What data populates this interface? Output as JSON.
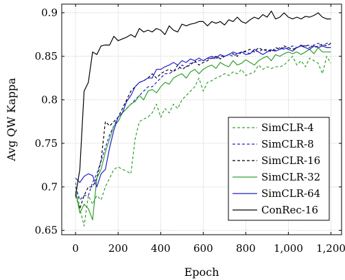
{
  "chart_data": {
    "type": "line",
    "xlabel": "Epoch",
    "ylabel": "Avg QW Kappa",
    "xlim": [
      -65,
      1250
    ],
    "ylim": [
      0.645,
      0.91
    ],
    "xticks": [
      0,
      200,
      400,
      600,
      800,
      1000,
      1200
    ],
    "xtick_labels": [
      "0",
      "200",
      "400",
      "600",
      "800",
      "1,000",
      "1,200"
    ],
    "yticks": [
      0.65,
      0.7,
      0.75,
      0.8,
      0.85,
      0.9
    ],
    "ytick_labels": [
      "0.65",
      "0.7",
      "0.75",
      "0.8",
      "0.85",
      "0.9"
    ],
    "grid": true,
    "legend_position": "lower-right",
    "series": [
      {
        "name": "SimCLR-4",
        "color": "#2ca02c",
        "dash": "dashed",
        "x": [
          0,
          20,
          40,
          60,
          80,
          100,
          120,
          140,
          160,
          180,
          200,
          220,
          240,
          260,
          280,
          300,
          320,
          340,
          360,
          380,
          400,
          420,
          440,
          460,
          480,
          500,
          520,
          540,
          560,
          580,
          600,
          620,
          640,
          660,
          680,
          700,
          720,
          740,
          760,
          780,
          800,
          820,
          840,
          860,
          880,
          900,
          920,
          940,
          960,
          980,
          1000,
          1020,
          1040,
          1060,
          1080,
          1100,
          1120,
          1140,
          1160,
          1180,
          1200
        ],
        "y": [
          0.705,
          0.675,
          0.655,
          0.69,
          0.68,
          0.69,
          0.685,
          0.7,
          0.71,
          0.72,
          0.723,
          0.72,
          0.718,
          0.715,
          0.755,
          0.775,
          0.778,
          0.78,
          0.785,
          0.795,
          0.78,
          0.79,
          0.785,
          0.795,
          0.79,
          0.8,
          0.805,
          0.81,
          0.815,
          0.825,
          0.81,
          0.82,
          0.822,
          0.825,
          0.827,
          0.83,
          0.828,
          0.832,
          0.83,
          0.835,
          0.828,
          0.83,
          0.832,
          0.84,
          0.835,
          0.838,
          0.836,
          0.838,
          0.838,
          0.84,
          0.845,
          0.85,
          0.84,
          0.845,
          0.838,
          0.848,
          0.845,
          0.842,
          0.83,
          0.85,
          0.842
        ]
      },
      {
        "name": "SimCLR-8",
        "color": "#1f1fcc",
        "dash": "dashed",
        "x": [
          0,
          20,
          40,
          60,
          80,
          100,
          120,
          140,
          160,
          180,
          200,
          220,
          240,
          260,
          280,
          300,
          320,
          340,
          360,
          380,
          400,
          420,
          440,
          460,
          480,
          500,
          520,
          540,
          560,
          580,
          600,
          620,
          640,
          660,
          680,
          700,
          720,
          740,
          760,
          780,
          800,
          820,
          840,
          860,
          880,
          900,
          920,
          940,
          960,
          980,
          1000,
          1020,
          1040,
          1060,
          1080,
          1100,
          1120,
          1140,
          1160,
          1180,
          1200
        ],
        "y": [
          0.7,
          0.685,
          0.69,
          0.69,
          0.705,
          0.715,
          0.73,
          0.745,
          0.76,
          0.77,
          0.78,
          0.785,
          0.79,
          0.795,
          0.8,
          0.805,
          0.81,
          0.815,
          0.815,
          0.82,
          0.825,
          0.83,
          0.83,
          0.833,
          0.835,
          0.84,
          0.838,
          0.842,
          0.843,
          0.845,
          0.845,
          0.847,
          0.848,
          0.847,
          0.85,
          0.85,
          0.852,
          0.85,
          0.853,
          0.855,
          0.855,
          0.853,
          0.857,
          0.855,
          0.858,
          0.856,
          0.858,
          0.857,
          0.86,
          0.858,
          0.86,
          0.862,
          0.86,
          0.863,
          0.862,
          0.86,
          0.863,
          0.865,
          0.862,
          0.865,
          0.865
        ]
      },
      {
        "name": "SimCLR-16",
        "color": "#000000",
        "dash": "dashed",
        "x": [
          0,
          20,
          40,
          60,
          80,
          100,
          120,
          140,
          160,
          180,
          200,
          220,
          240,
          260,
          280,
          300,
          320,
          340,
          360,
          380,
          400,
          420,
          440,
          460,
          480,
          500,
          520,
          540,
          560,
          580,
          600,
          620,
          640,
          660,
          680,
          700,
          720,
          740,
          760,
          780,
          800,
          820,
          840,
          860,
          880,
          900,
          920,
          940,
          960,
          980,
          1000,
          1020,
          1040,
          1060,
          1080,
          1100,
          1120,
          1140,
          1160,
          1180,
          1200
        ],
        "y": [
          0.69,
          0.675,
          0.69,
          0.7,
          0.7,
          0.71,
          0.73,
          0.775,
          0.77,
          0.775,
          0.78,
          0.79,
          0.8,
          0.81,
          0.815,
          0.82,
          0.822,
          0.825,
          0.83,
          0.825,
          0.83,
          0.833,
          0.835,
          0.832,
          0.84,
          0.835,
          0.838,
          0.84,
          0.845,
          0.84,
          0.843,
          0.845,
          0.848,
          0.85,
          0.847,
          0.85,
          0.852,
          0.853,
          0.85,
          0.855,
          0.856,
          0.858,
          0.855,
          0.86,
          0.857,
          0.858,
          0.855,
          0.86,
          0.858,
          0.862,
          0.86,
          0.858,
          0.86,
          0.862,
          0.862,
          0.863,
          0.86,
          0.862,
          0.864,
          0.862,
          0.865
        ]
      },
      {
        "name": "SimCLR-32",
        "color": "#2ca02c",
        "dash": "solid",
        "x": [
          0,
          20,
          40,
          60,
          80,
          100,
          120,
          140,
          160,
          180,
          200,
          220,
          240,
          260,
          280,
          300,
          320,
          340,
          360,
          380,
          400,
          420,
          440,
          460,
          480,
          500,
          520,
          540,
          560,
          580,
          600,
          620,
          640,
          660,
          680,
          700,
          720,
          740,
          760,
          780,
          800,
          820,
          840,
          860,
          880,
          900,
          920,
          940,
          960,
          980,
          1000,
          1020,
          1040,
          1060,
          1080,
          1100,
          1120,
          1140,
          1160,
          1180,
          1200
        ],
        "y": [
          0.695,
          0.67,
          0.68,
          0.675,
          0.662,
          0.71,
          0.72,
          0.74,
          0.755,
          0.77,
          0.775,
          0.785,
          0.79,
          0.795,
          0.798,
          0.805,
          0.8,
          0.81,
          0.812,
          0.808,
          0.815,
          0.82,
          0.818,
          0.825,
          0.828,
          0.83,
          0.825,
          0.832,
          0.835,
          0.83,
          0.835,
          0.838,
          0.84,
          0.836,
          0.843,
          0.84,
          0.838,
          0.845,
          0.84,
          0.842,
          0.846,
          0.843,
          0.84,
          0.845,
          0.848,
          0.85,
          0.845,
          0.852,
          0.85,
          0.853,
          0.855,
          0.853,
          0.855,
          0.852,
          0.855,
          0.858,
          0.853,
          0.86,
          0.855,
          0.855,
          0.855
        ]
      },
      {
        "name": "SimCLR-64",
        "color": "#1f1fcc",
        "dash": "solid",
        "x": [
          0,
          20,
          40,
          60,
          80,
          100,
          120,
          140,
          160,
          180,
          200,
          220,
          240,
          260,
          280,
          300,
          320,
          340,
          360,
          380,
          400,
          420,
          440,
          460,
          480,
          500,
          520,
          540,
          560,
          580,
          600,
          620,
          640,
          660,
          680,
          700,
          720,
          740,
          760,
          780,
          800,
          820,
          840,
          860,
          880,
          900,
          920,
          940,
          960,
          980,
          1000,
          1020,
          1040,
          1060,
          1080,
          1100,
          1120,
          1140,
          1160,
          1180,
          1200
        ],
        "y": [
          0.71,
          0.705,
          0.712,
          0.715,
          0.713,
          0.7,
          0.715,
          0.72,
          0.745,
          0.765,
          0.78,
          0.785,
          0.798,
          0.805,
          0.815,
          0.82,
          0.822,
          0.825,
          0.825,
          0.835,
          0.835,
          0.838,
          0.84,
          0.843,
          0.84,
          0.845,
          0.843,
          0.847,
          0.845,
          0.848,
          0.845,
          0.848,
          0.85,
          0.848,
          0.852,
          0.85,
          0.852,
          0.855,
          0.853,
          0.855,
          0.852,
          0.853,
          0.858,
          0.855,
          0.852,
          0.855,
          0.857,
          0.856,
          0.858,
          0.86,
          0.858,
          0.856,
          0.86,
          0.862,
          0.86,
          0.858,
          0.862,
          0.86,
          0.862,
          0.86,
          0.86
        ]
      },
      {
        "name": "ConRec-16",
        "color": "#000000",
        "dash": "solid",
        "x": [
          0,
          20,
          40,
          60,
          80,
          100,
          120,
          140,
          160,
          180,
          200,
          220,
          240,
          260,
          280,
          300,
          320,
          340,
          360,
          380,
          400,
          420,
          440,
          460,
          480,
          500,
          520,
          540,
          560,
          580,
          600,
          620,
          640,
          660,
          680,
          700,
          720,
          740,
          760,
          780,
          800,
          820,
          840,
          860,
          880,
          900,
          920,
          940,
          960,
          980,
          1000,
          1020,
          1040,
          1060,
          1080,
          1100,
          1120,
          1140,
          1160,
          1180,
          1200
        ],
        "y": [
          0.69,
          0.72,
          0.81,
          0.82,
          0.855,
          0.852,
          0.862,
          0.863,
          0.863,
          0.873,
          0.868,
          0.87,
          0.872,
          0.875,
          0.872,
          0.882,
          0.878,
          0.88,
          0.878,
          0.882,
          0.88,
          0.875,
          0.885,
          0.88,
          0.878,
          0.887,
          0.885,
          0.887,
          0.888,
          0.89,
          0.89,
          0.885,
          0.89,
          0.888,
          0.89,
          0.886,
          0.892,
          0.89,
          0.895,
          0.89,
          0.888,
          0.892,
          0.895,
          0.893,
          0.898,
          0.895,
          0.902,
          0.893,
          0.895,
          0.9,
          0.895,
          0.893,
          0.895,
          0.893,
          0.896,
          0.895,
          0.897,
          0.9,
          0.895,
          0.893,
          0.893
        ]
      }
    ]
  }
}
